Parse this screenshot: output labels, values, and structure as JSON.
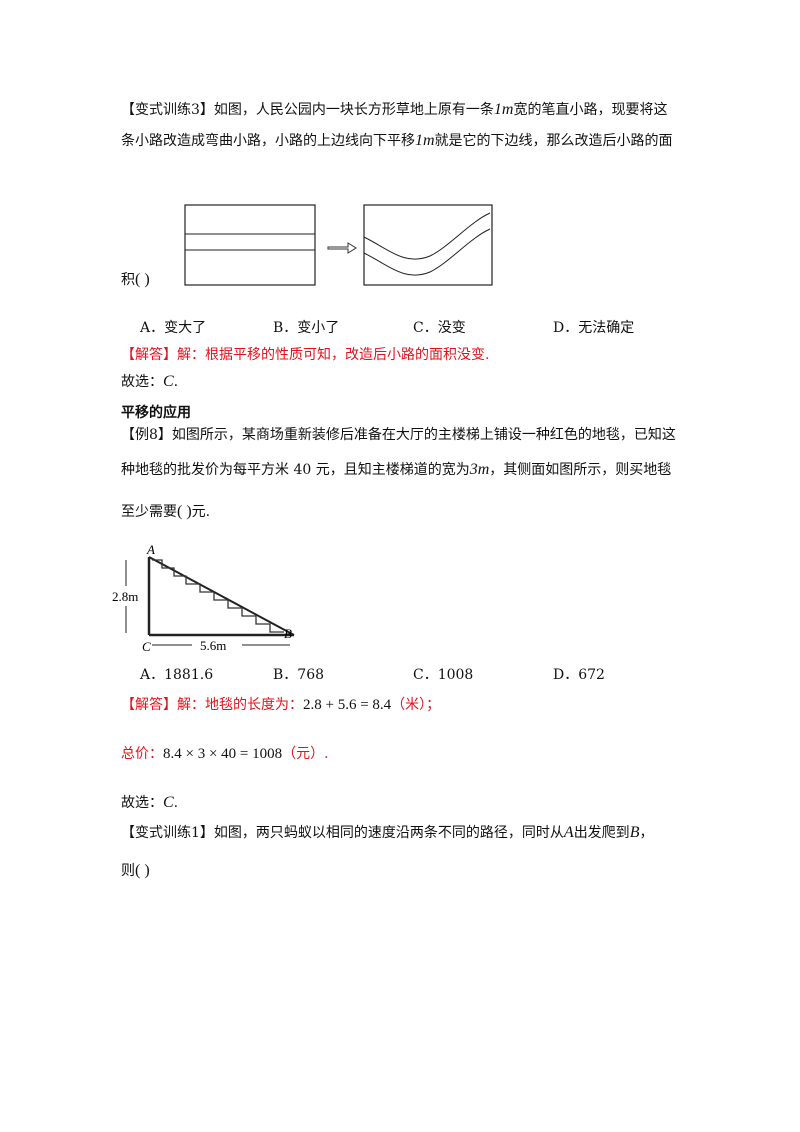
{
  "exercise3": {
    "line1_a": "【变式训练3】如图，人民公园内一块长方形草地上原有一条",
    "unit1": "1m",
    "line1_b": "宽的笔直小路，现要将这",
    "line2_a": "条小路改造成弯曲小路，小路的上边线向下平移",
    "unit2": "1m",
    "line2_b": "就是它的下边线，那么改造后小路的面",
    "line3": "积",
    "paren": "(      )",
    "options": [
      "A．变大了",
      "B．变小了",
      "C．没变",
      "D．无法确定"
    ],
    "answer": "【解答】解：根据平移的性质可知，改造后小路的面积没变.",
    "choice_prefix": "故选：",
    "choice": "C",
    "choice_suffix": "."
  },
  "section_title": "平移的应用",
  "example8": {
    "line1": "【例8】如图所示，某商场重新装修后准备在大厅的主楼梯上铺设一种红色的地毯，已知这",
    "line2_a": "种地毯的批发价为每平方米 40 元，且知主楼梯道的宽为",
    "unit": "3m",
    "line2_b": "，其侧面如图所示，则买地毯",
    "line3_a": "至少需要",
    "paren": "(      )",
    "line3_b": "元.",
    "figure": {
      "label_a": "A",
      "label_b": "B",
      "label_c": "C",
      "height": "2.8m",
      "base": "5.6m"
    },
    "options": [
      "A．1881.6",
      "B．768",
      "C．1008",
      "D．672"
    ],
    "answer_prefix": "【解答】解：地毯的长度为：",
    "answer_expr": "2.8 + 5.6 = 8.4",
    "answer_unit": "（米）；",
    "total_prefix": "总价：",
    "total_expr": "8.4 × 3 × 40 = 1008",
    "total_unit": "（元）.",
    "choice_prefix": "故选：",
    "choice": "C",
    "choice_suffix": "."
  },
  "exercise1": {
    "line1_a": "【变式训练1】如图，两只蚂蚁以相同的速度沿两条不同的路径，同时从",
    "point_a": "A",
    "line1_b": "出发爬到",
    "point_b": "B",
    "line1_c": "，",
    "line2": "则",
    "paren": "(      )"
  }
}
